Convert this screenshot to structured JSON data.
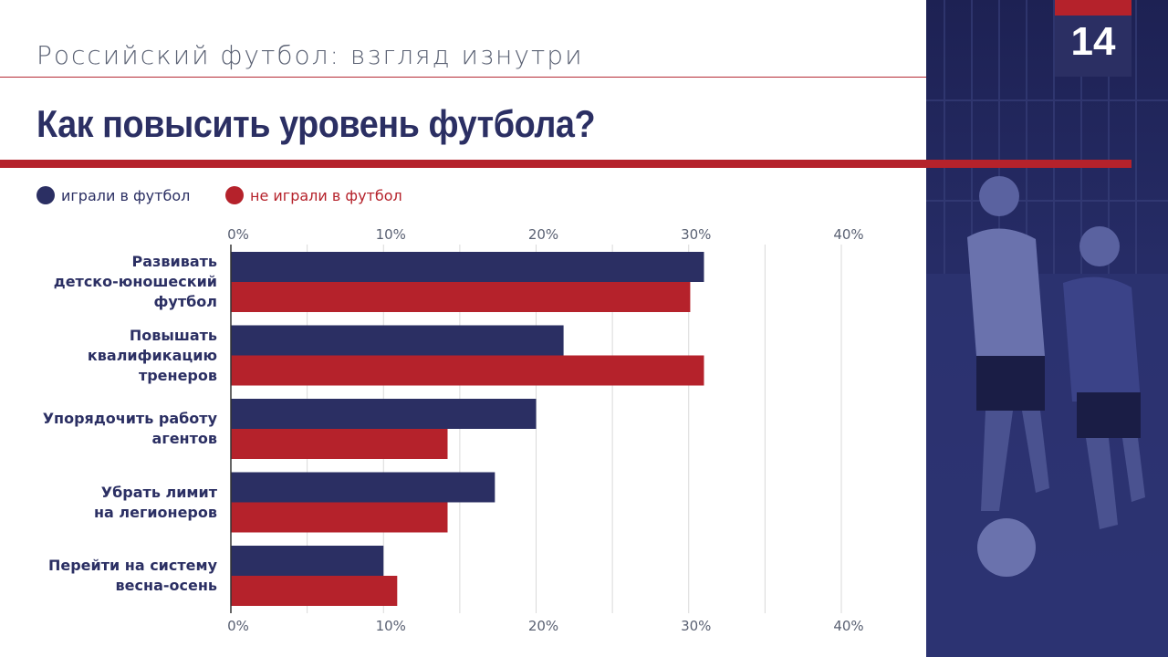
{
  "header": {
    "subtitle": "Российский футбол: взгляд изнутри",
    "title": "Как повысить уровень футбола?",
    "page_number": "14"
  },
  "colors": {
    "navy": "#2b2f63",
    "red": "#b5222b"
  },
  "chart_data": {
    "type": "bar",
    "orientation": "horizontal",
    "categories": [
      "Развивать детско-юношеский футбол",
      "Повышать квалификацию тренеров",
      "Упорядочить работу агентов",
      "Убрать лимит на легионеров",
      "Перейти на систему весна-осень"
    ],
    "category_lines": [
      [
        "Развивать",
        "детско-юношеский",
        "футбол"
      ],
      [
        "Повышать",
        "квалификацию",
        "тренеров"
      ],
      [
        "Упорядочить работу",
        "агентов"
      ],
      [
        "Убрать лимит",
        "на легионеров"
      ],
      [
        "Перейти на систему",
        "весна-осень"
      ]
    ],
    "series": [
      {
        "name": "играли в футбол",
        "color": "#2b2f63",
        "values": [
          31,
          21.8,
          20,
          17.3,
          10
        ]
      },
      {
        "name": "не играли в футбол",
        "color": "#b5222b",
        "values": [
          30.1,
          31,
          14.2,
          14.2,
          10.9
        ]
      }
    ],
    "xlim": [
      0,
      40
    ],
    "xticks": [
      "0%",
      "10%",
      "20%",
      "30%",
      "40%"
    ],
    "tick_values": [
      0,
      10,
      20,
      30,
      40
    ],
    "grid": true,
    "legend_position": "top-left"
  }
}
